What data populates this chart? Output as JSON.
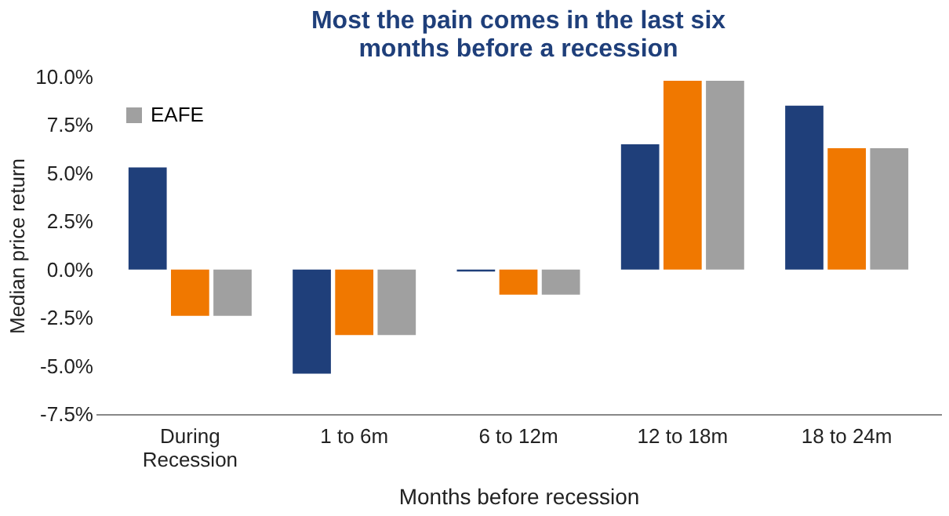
{
  "chart_data": {
    "type": "bar",
    "title": "Most the pain comes in the last six months before a recession",
    "xlabel": "Months before recession",
    "ylabel": "Median price return",
    "categories": [
      "During Recession",
      "1 to 6m",
      "6 to 12m",
      "12 to 18m",
      "18 to 24m"
    ],
    "series": [
      {
        "color": "#1f3f7a",
        "values": [
          5.3,
          -5.4,
          -0.1,
          6.5,
          8.5
        ]
      },
      {
        "color": "#f07800",
        "values": [
          -2.4,
          -3.4,
          -1.3,
          9.8,
          6.3
        ]
      },
      {
        "name": "EAFE",
        "color": "#a0a0a0",
        "values": [
          -2.4,
          -3.4,
          -1.3,
          9.8,
          6.3
        ]
      }
    ],
    "ylim": [
      -7.5,
      10
    ],
    "yticks": [
      {
        "value": -7.5,
        "label": "-7.5%"
      },
      {
        "value": -5,
        "label": "-5.0%"
      },
      {
        "value": -2.5,
        "label": "-2.5%"
      },
      {
        "value": 0,
        "label": "0.0%"
      },
      {
        "value": 2.5,
        "label": "2.5%"
      },
      {
        "value": 5,
        "label": "5.0%"
      },
      {
        "value": 7.5,
        "label": "7.5%"
      },
      {
        "value": 10,
        "label": "10.0%"
      }
    ],
    "grid": false,
    "legend": "top left"
  }
}
